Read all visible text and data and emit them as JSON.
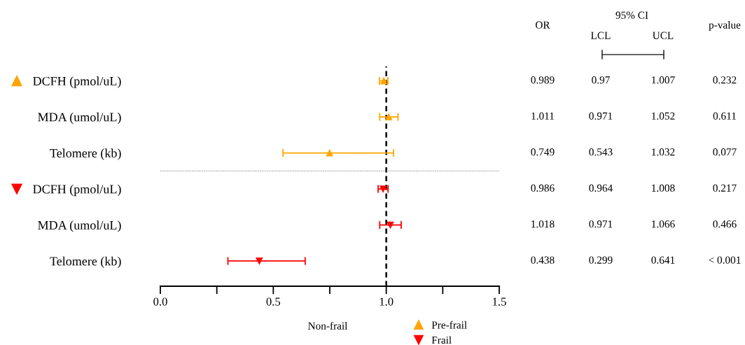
{
  "chart_data": {
    "type": "scatter",
    "orientation": "horizontal",
    "categories": [
      "DCFH (pmol/uL)",
      "MDA (umol/uL)",
      "Telomere (kb)",
      "DCFH (pmol/uL)",
      "MDA (umol/uL)",
      "Telomere (kb)"
    ],
    "series": [
      {
        "name": "Pre-frail",
        "color": "#ffa500",
        "marker": "triangle",
        "values": [
          0.989,
          1.011,
          0.749,
          null,
          null,
          null
        ],
        "errors": [
          [
            0.97,
            1.007
          ],
          [
            0.971,
            1.052
          ],
          [
            0.543,
            1.032
          ],
          null,
          null,
          null
        ]
      },
      {
        "name": "Frail",
        "color": "#ff0000",
        "marker": "triangle-down",
        "values": [
          null,
          null,
          null,
          0.986,
          1.018,
          0.438
        ],
        "errors": [
          null,
          null,
          null,
          [
            0.964,
            1.008
          ],
          [
            0.971,
            1.066
          ],
          [
            0.299,
            0.641
          ]
        ]
      }
    ],
    "xlim": [
      0,
      1.5
    ],
    "xticks": [
      {
        "value": 0,
        "label": "0.0"
      },
      {
        "value": 0.25,
        "label": null
      },
      {
        "value": 0.5,
        "label": "0.5"
      },
      {
        "value": 0.75,
        "label": null
      },
      {
        "value": 1,
        "label": "1.0"
      },
      {
        "value": 1.25,
        "label": null
      },
      {
        "value": 1.5,
        "label": "1.5"
      }
    ],
    "ref_lines": [
      {
        "axis": "x",
        "value": 1,
        "color": "#000000",
        "line_style": "dashed"
      }
    ],
    "annotations": [
      "OR",
      "95% CI",
      "LCL",
      "UCL",
      "p-value",
      "0.989",
      "0.97",
      "1.007",
      "0.232",
      "1.011",
      "0.971",
      "1.052",
      "0.611",
      "0.749",
      "0.543",
      "1.032",
      "0.077",
      "0.986",
      "0.964",
      "1.008",
      "0.217",
      "1.018",
      "0.971",
      "1.066",
      "0.466",
      "0.438",
      "0.299",
      "0.641",
      "< 0.001",
      "Non-frail"
    ],
    "legend": "bottom"
  }
}
